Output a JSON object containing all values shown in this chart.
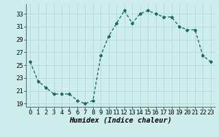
{
  "x": [
    0,
    1,
    2,
    3,
    4,
    5,
    6,
    7,
    8,
    9,
    10,
    11,
    12,
    13,
    14,
    15,
    16,
    17,
    18,
    19,
    20,
    21,
    22,
    23
  ],
  "y": [
    25.5,
    22.5,
    21.5,
    20.5,
    20.5,
    20.5,
    19.5,
    19.0,
    19.5,
    26.5,
    29.5,
    31.5,
    33.5,
    31.5,
    33.0,
    33.5,
    33.0,
    32.5,
    32.5,
    31.0,
    30.5,
    30.5,
    26.5,
    25.5
  ],
  "line_color": "#1a6b5e",
  "marker": "D",
  "marker_size": 2.0,
  "bg_color": "#ceeeed",
  "grid_color": "#aad4d4",
  "xlabel": "Humidex (Indice chaleur)",
  "xlim": [
    -0.5,
    23.5
  ],
  "ylim": [
    18.5,
    34.5
  ],
  "yticks": [
    19,
    21,
    23,
    25,
    27,
    29,
    31,
    33
  ],
  "xtick_labels": [
    "0",
    "1",
    "2",
    "3",
    "4",
    "5",
    "6",
    "7",
    "8",
    "9",
    "10",
    "11",
    "12",
    "13",
    "14",
    "15",
    "16",
    "17",
    "18",
    "19",
    "20",
    "21",
    "22",
    "23"
  ],
  "xlabel_fontsize": 7.5,
  "tick_fontsize": 6.5,
  "line_width": 1.0
}
